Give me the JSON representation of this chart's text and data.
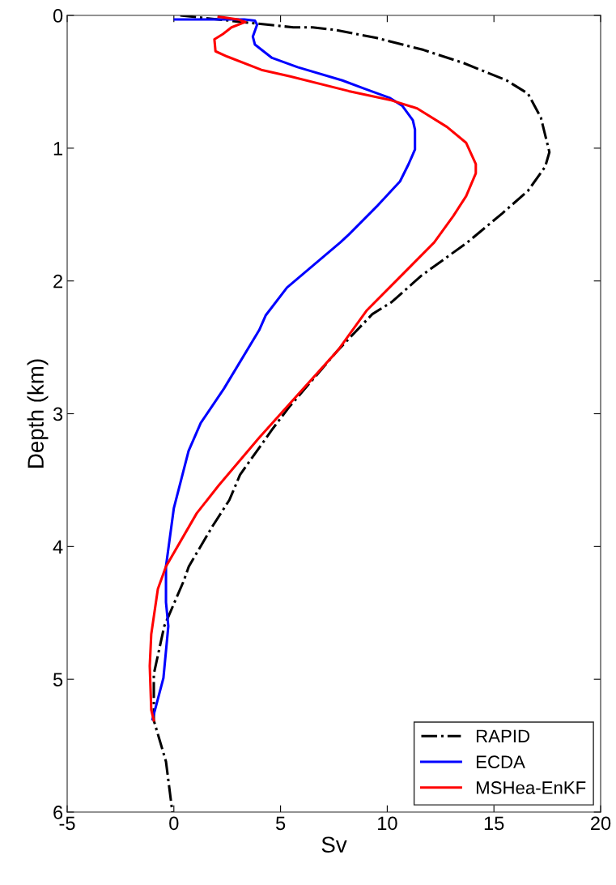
{
  "chart_data": {
    "type": "line",
    "xlabel": "Sv",
    "ylabel": "Depth (km)",
    "xlim": [
      -5,
      20
    ],
    "xticks": [
      -5,
      0,
      5,
      10,
      15,
      20
    ],
    "ylim": [
      6,
      0
    ],
    "yticks": [
      0,
      1,
      2,
      3,
      4,
      5,
      6
    ],
    "grid": false,
    "legend": "bottom right",
    "marker": "none",
    "series": [
      {
        "name": "RAPID",
        "color": "#000000",
        "line_style": "dashdot",
        "x": [
          0.3,
          3.8,
          5.6,
          6.5,
          7.6,
          9.5,
          11.7,
          13.6,
          15.6,
          16.6,
          17.2,
          17.6,
          17.4,
          16.6,
          15.4,
          13.75,
          11.6,
          10.2,
          9.3,
          7.7,
          5.4,
          4.6,
          3.1,
          2.6,
          1.8,
          0.7,
          0.46,
          -0.45,
          -0.94,
          -0.94,
          -0.37,
          -0.07
        ],
        "values": [
          0,
          0.06,
          0.09,
          0.09,
          0.11,
          0.17,
          0.26,
          0.36,
          0.49,
          0.59,
          0.77,
          1.03,
          1.14,
          1.32,
          1.49,
          1.71,
          1.96,
          2.16,
          2.25,
          2.52,
          2.95,
          3.12,
          3.46,
          3.65,
          3.85,
          4.15,
          4.26,
          4.6,
          4.96,
          5.31,
          5.62,
          6.0
        ]
      },
      {
        "name": "ECDA",
        "color": "#0000ff",
        "line_style": "solid",
        "x": [
          0.05,
          3.3,
          3.8,
          3.9,
          3.7,
          3.8,
          4.6,
          5.8,
          7.9,
          8.9,
          10.1,
          10.7,
          11.2,
          11.3,
          11.3,
          11.0,
          10.6,
          9.5,
          8.2,
          7.8,
          5.3,
          4.3,
          4.0,
          2.35,
          1.26,
          0.69,
          0.0,
          -0.37,
          -0.37,
          -0.26,
          -0.49,
          -1.0
        ],
        "values": [
          0.03,
          0.03,
          0.04,
          0.07,
          0.16,
          0.22,
          0.32,
          0.39,
          0.49,
          0.55,
          0.62,
          0.68,
          0.79,
          0.86,
          1.01,
          1.12,
          1.25,
          1.44,
          1.65,
          1.71,
          2.05,
          2.26,
          2.37,
          2.81,
          3.07,
          3.28,
          3.71,
          4.15,
          4.42,
          4.6,
          4.99,
          5.3
        ]
      },
      {
        "name": "MSHea-EnKF",
        "color": "#ff0000",
        "line_style": "solid",
        "x": [
          2.1,
          3.0,
          3.35,
          2.7,
          2.3,
          1.9,
          1.95,
          2.5,
          4.1,
          5.45,
          8.2,
          10.2,
          11.4,
          12.8,
          13.7,
          14.15,
          14.15,
          13.7,
          13.1,
          12.2,
          9.05,
          7.7,
          5.4,
          4.0,
          2.1,
          1.07,
          -0.37,
          -0.75,
          -1.06,
          -1.13,
          -1.06,
          -0.94
        ],
        "values": [
          0.01,
          0.03,
          0.05,
          0.09,
          0.14,
          0.18,
          0.27,
          0.31,
          0.41,
          0.46,
          0.57,
          0.64,
          0.7,
          0.84,
          0.96,
          1.12,
          1.19,
          1.36,
          1.51,
          1.71,
          2.22,
          2.52,
          2.93,
          3.18,
          3.54,
          3.75,
          4.15,
          4.32,
          4.66,
          4.9,
          5.23,
          5.31
        ]
      }
    ]
  }
}
